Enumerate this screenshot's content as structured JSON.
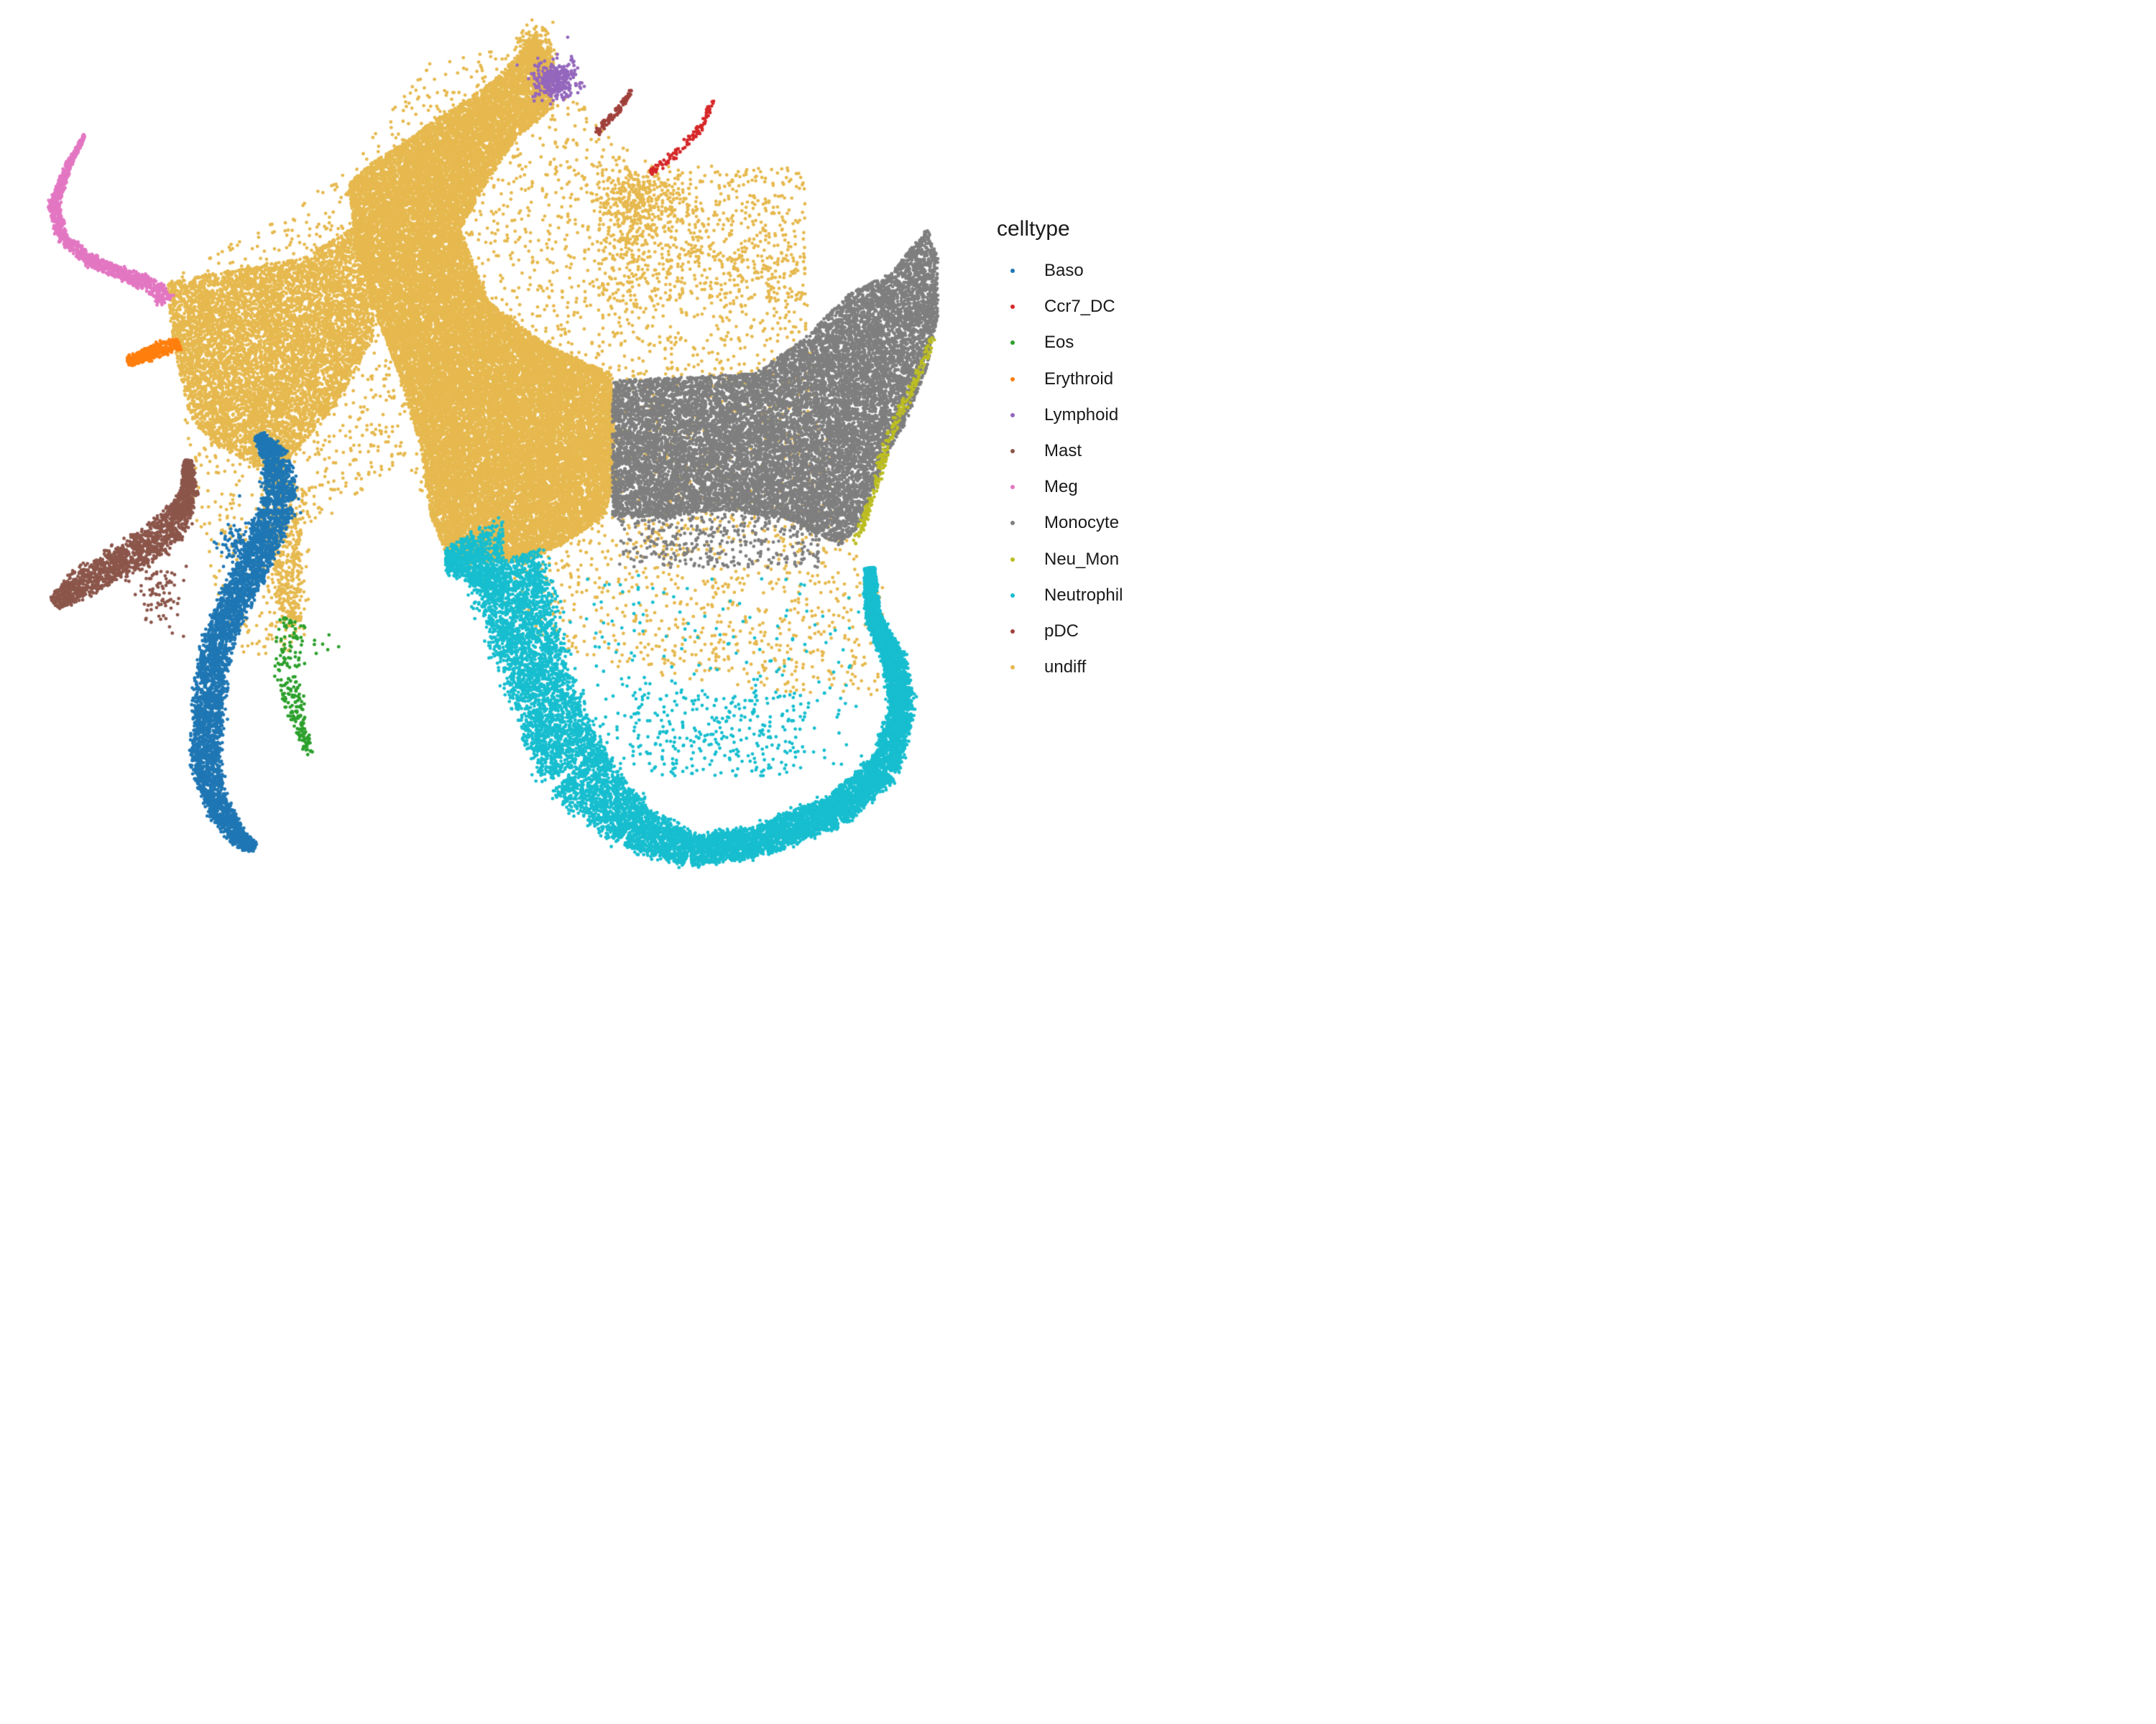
{
  "chart_data": {
    "type": "scatter",
    "title": "",
    "xlabel": "",
    "ylabel": "",
    "axes_visible": false,
    "grid": false,
    "legend": {
      "title": "celltype",
      "placement": "right",
      "entries": [
        {
          "label": "Baso",
          "color": "#1F77B4"
        },
        {
          "label": "Ccr7_DC",
          "color": "#D62728"
        },
        {
          "label": "Eos",
          "color": "#2CA02C"
        },
        {
          "label": "Erythroid",
          "color": "#FF7F0E"
        },
        {
          "label": "Lymphoid",
          "color": "#9467BD"
        },
        {
          "label": "Mast",
          "color": "#8C564B"
        },
        {
          "label": "Meg",
          "color": "#E377C2"
        },
        {
          "label": "Monocyte",
          "color": "#7F7F7F"
        },
        {
          "label": "Neu_Mon",
          "color": "#BCBD22"
        },
        {
          "label": "Neutrophil",
          "color": "#17BECF"
        },
        {
          "label": "pDC",
          "color": "#A0413C"
        },
        {
          "label": "undiff",
          "color": "#E6B94F"
        }
      ]
    },
    "series": [
      {
        "name": "undiff",
        "color": "#E6B94F"
      },
      {
        "name": "Monocyte",
        "color": "#7F7F7F"
      },
      {
        "name": "Neutrophil",
        "color": "#17BECF"
      },
      {
        "name": "Baso",
        "color": "#1F77B4"
      },
      {
        "name": "Mast",
        "color": "#8C564B"
      },
      {
        "name": "Meg",
        "color": "#E377C2"
      },
      {
        "name": "Erythroid",
        "color": "#FF7F0E"
      },
      {
        "name": "Eos",
        "color": "#2CA02C"
      },
      {
        "name": "Lymphoid",
        "color": "#9467BD"
      },
      {
        "name": "pDC",
        "color": "#A0413C"
      },
      {
        "name": "Ccr7_DC",
        "color": "#D62728"
      },
      {
        "name": "Neu_Mon",
        "color": "#BCBD22"
      }
    ]
  }
}
